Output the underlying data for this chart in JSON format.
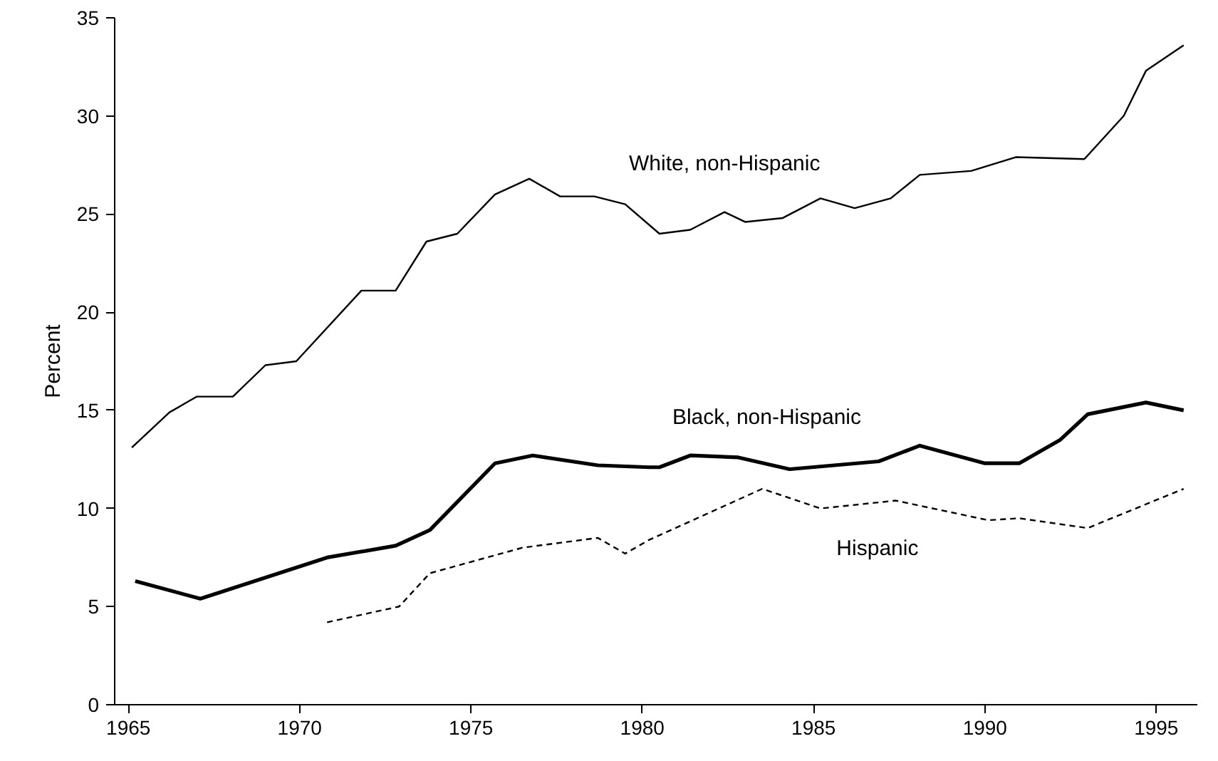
{
  "chart_data": {
    "type": "line",
    "ylabel": "Percent",
    "xlim": [
      1964.6,
      1996.2
    ],
    "ylim": [
      0,
      35
    ],
    "xticks": [
      1965,
      1970,
      1975,
      1980,
      1985,
      1990,
      1995
    ],
    "yticks": [
      0,
      5,
      10,
      15,
      20,
      25,
      30,
      35
    ],
    "grid": false,
    "marker": "none",
    "series": [
      {
        "name": "White, non-Hispanic",
        "color": "#000000",
        "line_style": "solid",
        "x": [
          1965.1,
          1966.2,
          1967.0,
          1968.05,
          1969.0,
          1969.9,
          1971.8,
          1972.8,
          1973.7,
          1974.6,
          1975.7,
          1976.7,
          1977.6,
          1978.6,
          1979.5,
          1980.5,
          1981.4,
          1982.4,
          1983.0,
          1984.1,
          1985.2,
          1986.2,
          1987.25,
          1988.1,
          1989.6,
          1990.9,
          1992.9,
          1994.05,
          1994.7,
          1995.8
        ],
        "values": [
          13.1,
          14.9,
          15.7,
          15.7,
          17.3,
          17.5,
          21.1,
          21.1,
          23.6,
          24.0,
          26.0,
          26.8,
          25.9,
          25.9,
          25.5,
          24.0,
          24.2,
          25.1,
          24.6,
          24.8,
          25.8,
          25.3,
          25.8,
          27.0,
          27.2,
          27.9,
          27.8,
          30.0,
          32.3,
          33.6
        ]
      },
      {
        "name": "Black, non-Hispanic",
        "color": "#000000",
        "line_style": "solid",
        "x": [
          1965.2,
          1967.1,
          1970.8,
          1972.8,
          1973.8,
          1975.7,
          1976.8,
          1978.7,
          1980.2,
          1980.5,
          1981.4,
          1982.8,
          1984.3,
          1986.9,
          1988.1,
          1990.0,
          1991.0,
          1992.2,
          1993.0,
          1994.7,
          1995.8
        ],
        "values": [
          6.3,
          5.4,
          7.5,
          8.1,
          8.9,
          12.3,
          12.7,
          12.2,
          12.1,
          12.1,
          12.7,
          12.6,
          12.0,
          12.4,
          13.2,
          12.3,
          12.3,
          13.5,
          14.8,
          15.4,
          15.0
        ]
      },
      {
        "name": "Hispanic",
        "color": "#000000",
        "line_style": "dashed",
        "x": [
          1970.8,
          1972.9,
          1973.8,
          1976.5,
          1978.7,
          1979.5,
          1980.2,
          1983.5,
          1985.2,
          1987.4,
          1990.1,
          1991.0,
          1993.0,
          1995.8
        ],
        "values": [
          4.2,
          5.0,
          6.7,
          8.0,
          8.5,
          7.7,
          8.4,
          11.0,
          10.0,
          10.4,
          9.4,
          9.5,
          9.0,
          11.0
        ]
      }
    ]
  }
}
